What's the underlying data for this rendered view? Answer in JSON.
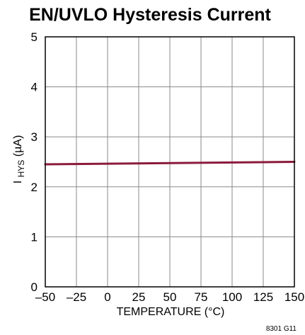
{
  "chart_data": {
    "type": "line",
    "title": "EN/UVLO Hysteresis Current",
    "xlabel": "TEMPERATURE (°C)",
    "ylabel": {
      "main": "I",
      "subscript": "HYS",
      "unit": " (µA)"
    },
    "x_ticks": [
      "–50",
      "–25",
      "0",
      "25",
      "50",
      "75",
      "100",
      "125",
      "150"
    ],
    "y_ticks": [
      "0",
      "1",
      "2",
      "3",
      "4",
      "5"
    ],
    "xlim": [
      -50,
      150
    ],
    "ylim": [
      0,
      5
    ],
    "grid": true,
    "series": [
      {
        "color": "#8b1a3c",
        "x": [
          -50,
          150
        ],
        "y": [
          2.45,
          2.5
        ]
      }
    ],
    "footer_code": "8301 G11"
  }
}
